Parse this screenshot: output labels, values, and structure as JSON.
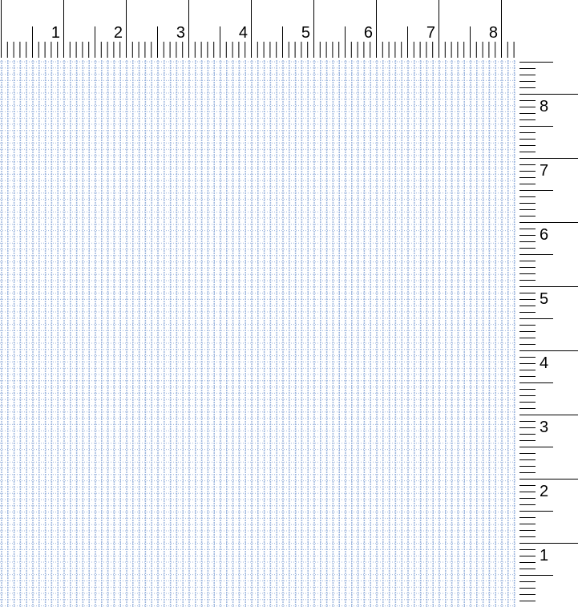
{
  "top_ruler": {
    "labels": [
      "1",
      "2",
      "3",
      "4",
      "5",
      "6",
      "7",
      "8"
    ]
  },
  "right_ruler": {
    "labels": [
      "8",
      "7",
      "6",
      "5",
      "4",
      "3",
      "2",
      "1"
    ]
  },
  "colors": {
    "grid": "#9db6de",
    "ruler_tick": "#000000",
    "background": "#ffffff"
  }
}
